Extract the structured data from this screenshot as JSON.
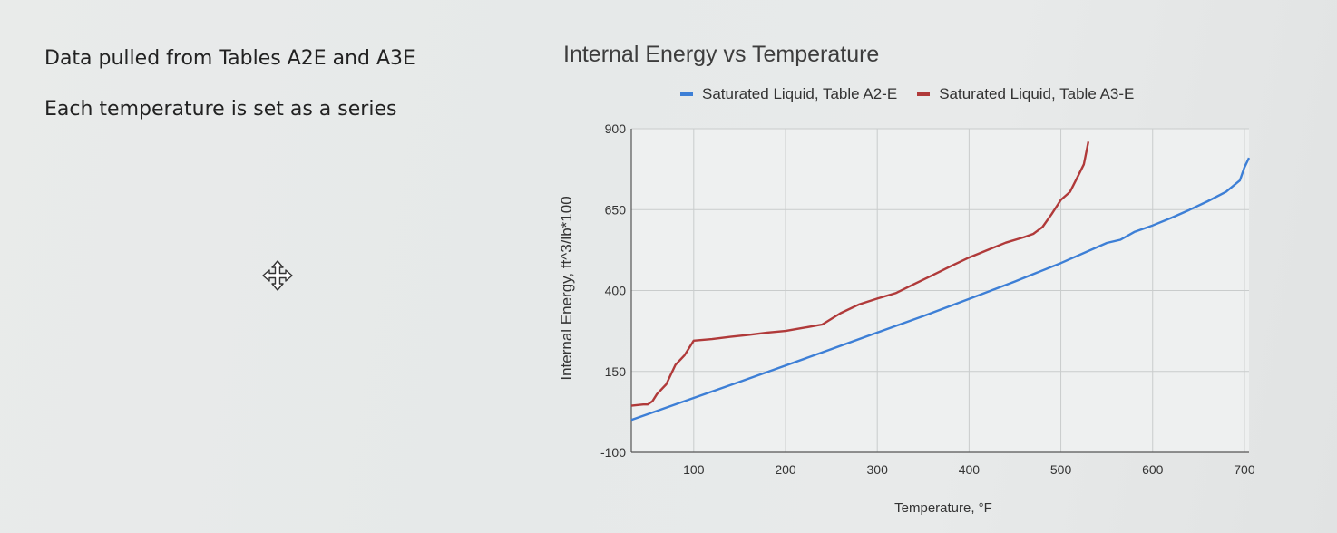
{
  "notes": {
    "line1": "Data pulled from Tables A2E and A3E",
    "line2": "Each temperature is set as a series"
  },
  "cursor": {
    "icon": "move-cursor-icon"
  },
  "chart_data": {
    "type": "line",
    "title": "Internal Energy vs Temperature",
    "xlabel": "Temperature, °F",
    "ylabel": "Internal Energy, ft^3/lb*100",
    "xlim": [
      32,
      705
    ],
    "ylim": [
      -100,
      900
    ],
    "x_ticks": [
      100,
      200,
      300,
      400,
      500,
      600,
      700
    ],
    "y_ticks": [
      -100,
      150,
      400,
      650,
      900
    ],
    "grid": true,
    "legend_position": "top",
    "series": [
      {
        "name": "Saturated Liquid, Table A2-E",
        "color": "#3d7fd6",
        "points": [
          [
            32,
            0
          ],
          [
            50,
            18
          ],
          [
            100,
            68
          ],
          [
            150,
            118
          ],
          [
            200,
            168
          ],
          [
            250,
            219
          ],
          [
            300,
            270
          ],
          [
            350,
            321
          ],
          [
            400,
            374
          ],
          [
            450,
            428
          ],
          [
            500,
            485
          ],
          [
            550,
            547
          ],
          [
            565,
            557
          ],
          [
            580,
            581
          ],
          [
            600,
            601
          ],
          [
            620,
            624
          ],
          [
            640,
            649
          ],
          [
            660,
            676
          ],
          [
            680,
            705
          ],
          [
            695,
            740
          ],
          [
            700,
            780
          ],
          [
            705,
            810
          ]
        ]
      },
      {
        "name": "Saturated Liquid, Table A3-E",
        "color": "#b03a3a",
        "points": [
          [
            32,
            44
          ],
          [
            45,
            48
          ],
          [
            50,
            48
          ],
          [
            55,
            58
          ],
          [
            60,
            80
          ],
          [
            70,
            110
          ],
          [
            80,
            170
          ],
          [
            90,
            200
          ],
          [
            100,
            245
          ],
          [
            120,
            250
          ],
          [
            140,
            257
          ],
          [
            160,
            263
          ],
          [
            180,
            270
          ],
          [
            200,
            275
          ],
          [
            220,
            285
          ],
          [
            240,
            295
          ],
          [
            260,
            330
          ],
          [
            280,
            357
          ],
          [
            300,
            375
          ],
          [
            320,
            392
          ],
          [
            340,
            420
          ],
          [
            360,
            447
          ],
          [
            380,
            475
          ],
          [
            400,
            502
          ],
          [
            420,
            525
          ],
          [
            440,
            548
          ],
          [
            460,
            565
          ],
          [
            470,
            575
          ],
          [
            480,
            596
          ],
          [
            490,
            636
          ],
          [
            500,
            680
          ],
          [
            510,
            705
          ],
          [
            518,
            750
          ],
          [
            525,
            790
          ],
          [
            530,
            860
          ]
        ]
      }
    ]
  }
}
